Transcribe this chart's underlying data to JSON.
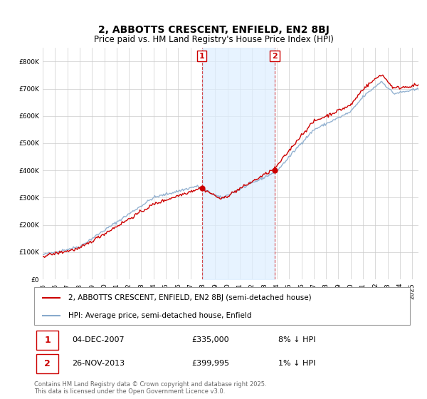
{
  "title": "2, ABBOTTS CRESCENT, ENFIELD, EN2 8BJ",
  "subtitle": "Price paid vs. HM Land Registry's House Price Index (HPI)",
  "legend_entries": [
    "2, ABBOTTS CRESCENT, ENFIELD, EN2 8BJ (semi-detached house)",
    "HPI: Average price, semi-detached house, Enfield"
  ],
  "annotation1": {
    "label": "1",
    "date": "04-DEC-2007",
    "price": 335000,
    "note": "8% ↓ HPI"
  },
  "annotation2": {
    "label": "2",
    "date": "26-NOV-2013",
    "price": 399995,
    "note": "1% ↓ HPI"
  },
  "footer": "Contains HM Land Registry data © Crown copyright and database right 2025.\nThis data is licensed under the Open Government Licence v3.0.",
  "ylim": [
    0,
    850000
  ],
  "sale_color": "#cc0000",
  "hpi_color": "#88aacc",
  "shade_color": "#ddeeff",
  "annotation_color": "#cc0000",
  "background_color": "#ffffff",
  "grid_color": "#cccccc",
  "sale1_year": 2007.917,
  "sale1_price": 335000,
  "sale2_year": 2013.833,
  "sale2_price": 399995
}
